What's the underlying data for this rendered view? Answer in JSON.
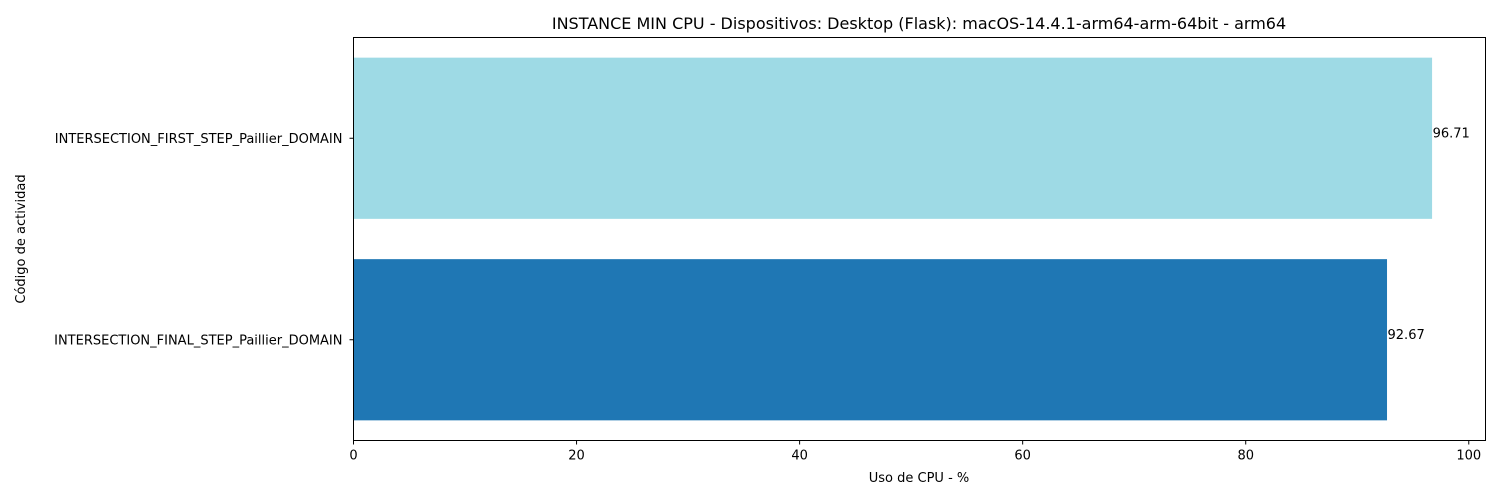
{
  "chart_data": {
    "type": "bar",
    "orientation": "horizontal",
    "title": "INSTANCE MIN CPU - Dispositivos: Desktop (Flask): macOS-14.4.1-arm64-arm-64bit - arm64",
    "xlabel": "Uso de CPU - %",
    "ylabel": "Código de actividad",
    "xlim": [
      0,
      101.5
    ],
    "xticks": [
      0,
      20,
      40,
      60,
      80,
      100
    ],
    "categories": [
      "INTERSECTION_FIRST_STEP_Paillier_DOMAIN",
      "INTERSECTION_FINAL_STEP_Paillier_DOMAIN"
    ],
    "values": [
      96.71,
      92.67
    ],
    "data_labels": [
      "96.71",
      "92.67"
    ],
    "colors": [
      "#9edae5",
      "#1f77b4"
    ],
    "grid": false,
    "legend": "none"
  }
}
